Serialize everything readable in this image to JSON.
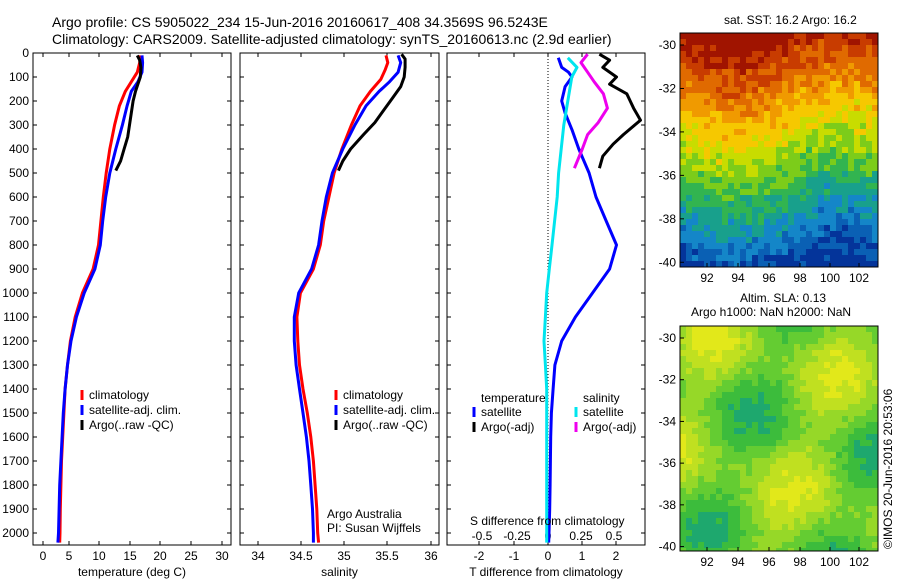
{
  "header": {
    "line1": "Argo profile: CS 5905022_234 15-Jun-2016 20160617_408 34.3569S 96.5243E",
    "line2": "Climatology: CARS2009. Satellite-adjusted climatology: synTS_20160613.nc (2.9d earlier)"
  },
  "colors": {
    "climatology": "#ff0000",
    "satellite": "#0000ff",
    "argo": "#000000",
    "satellite_salinity": "#00e5ee",
    "argo_adj_salinity": "#ee00ee"
  },
  "depth_axis": {
    "ylim": [
      0,
      2050
    ],
    "ticks": [
      "0",
      "100",
      "200",
      "300",
      "400",
      "500",
      "600",
      "700",
      "800",
      "900",
      "1000",
      "1100",
      "1200",
      "1300",
      "1400",
      "1500",
      "1600",
      "1700",
      "1800",
      "1900",
      "2000"
    ]
  },
  "chart_data": [
    {
      "id": "temperature",
      "type": "line",
      "xlabel": "temperature (deg C)",
      "xlim": [
        -2,
        32
      ],
      "xticks": [
        "0",
        "5",
        "10",
        "15",
        "20",
        "25",
        "30"
      ],
      "legend": [
        "climatology",
        "satellite-adj. clim.",
        "Argo(..raw -QC)"
      ],
      "series": [
        {
          "name": "climatology",
          "color": "#ff0000",
          "points": [
            [
              16.3,
              10
            ],
            [
              16.2,
              40
            ],
            [
              15.8,
              80
            ],
            [
              14.8,
              120
            ],
            [
              13.8,
              160
            ],
            [
              12.8,
              220
            ],
            [
              12.0,
              300
            ],
            [
              11.2,
              400
            ],
            [
              10.6,
              500
            ],
            [
              10.1,
              600
            ],
            [
              9.7,
              700
            ],
            [
              9.3,
              800
            ],
            [
              8.4,
              900
            ],
            [
              6.6,
              1000
            ],
            [
              5.4,
              1100
            ],
            [
              4.6,
              1200
            ],
            [
              4.1,
              1300
            ],
            [
              3.7,
              1400
            ],
            [
              3.5,
              1500
            ],
            [
              3.3,
              1600
            ],
            [
              3.1,
              1700
            ],
            [
              3.0,
              1800
            ],
            [
              2.9,
              1900
            ],
            [
              2.85,
              2000
            ],
            [
              2.8,
              2040
            ]
          ]
        },
        {
          "name": "satellite-adj. clim.",
          "color": "#0000ff",
          "points": [
            [
              16.6,
              10
            ],
            [
              16.7,
              40
            ],
            [
              16.6,
              80
            ],
            [
              15.9,
              120
            ],
            [
              14.8,
              160
            ],
            [
              14.1,
              220
            ],
            [
              13.3,
              300
            ],
            [
              12.2,
              400
            ],
            [
              11.2,
              500
            ],
            [
              10.5,
              600
            ],
            [
              10.0,
              700
            ],
            [
              9.6,
              800
            ],
            [
              8.7,
              900
            ],
            [
              6.9,
              1000
            ],
            [
              5.6,
              1100
            ],
            [
              4.7,
              1200
            ],
            [
              4.1,
              1300
            ],
            [
              3.7,
              1400
            ],
            [
              3.4,
              1500
            ],
            [
              3.2,
              1600
            ],
            [
              3.0,
              1700
            ],
            [
              2.8,
              1800
            ],
            [
              2.7,
              1900
            ],
            [
              2.6,
              2000
            ],
            [
              2.5,
              2040
            ]
          ]
        },
        {
          "name": "Argo(..raw -QC)",
          "color": "#000000",
          "points": [
            [
              15.8,
              10
            ],
            [
              16.2,
              30
            ],
            [
              16.4,
              60
            ],
            [
              16.3,
              100
            ],
            [
              15.9,
              130
            ],
            [
              15.5,
              160
            ],
            [
              15.1,
              200
            ],
            [
              14.8,
              250
            ],
            [
              14.5,
              300
            ],
            [
              14.2,
              350
            ],
            [
              13.6,
              400
            ],
            [
              13.0,
              450
            ],
            [
              12.2,
              490
            ]
          ]
        }
      ]
    },
    {
      "id": "salinity",
      "type": "line",
      "xlabel": "salinity",
      "xlim": [
        33.8,
        36.1
      ],
      "xticks": [
        "34",
        "34.5",
        "35",
        "35.5",
        "36"
      ],
      "legend": [
        "climatology",
        "satellite-adj. clim.",
        "Argo(..raw -QC)"
      ],
      "series": [
        {
          "name": "climatology",
          "color": "#ff0000",
          "points": [
            [
              35.48,
              10
            ],
            [
              35.5,
              40
            ],
            [
              35.47,
              70
            ],
            [
              35.42,
              110
            ],
            [
              35.3,
              160
            ],
            [
              35.18,
              220
            ],
            [
              35.08,
              300
            ],
            [
              34.97,
              400
            ],
            [
              34.88,
              500
            ],
            [
              34.82,
              600
            ],
            [
              34.76,
              700
            ],
            [
              34.72,
              800
            ],
            [
              34.64,
              900
            ],
            [
              34.49,
              1000
            ],
            [
              34.45,
              1100
            ],
            [
              34.46,
              1200
            ],
            [
              34.48,
              1300
            ],
            [
              34.52,
              1400
            ],
            [
              34.57,
              1500
            ],
            [
              34.61,
              1600
            ],
            [
              34.64,
              1700
            ],
            [
              34.66,
              1800
            ],
            [
              34.68,
              1900
            ],
            [
              34.69,
              2000
            ],
            [
              34.7,
              2040
            ]
          ]
        },
        {
          "name": "satellite-adj. clim.",
          "color": "#0000ff",
          "points": [
            [
              35.62,
              10
            ],
            [
              35.65,
              40
            ],
            [
              35.62,
              80
            ],
            [
              35.52,
              120
            ],
            [
              35.4,
              160
            ],
            [
              35.25,
              220
            ],
            [
              35.12,
              300
            ],
            [
              34.98,
              400
            ],
            [
              34.86,
              500
            ],
            [
              34.79,
              600
            ],
            [
              34.74,
              700
            ],
            [
              34.7,
              800
            ],
            [
              34.62,
              900
            ],
            [
              34.47,
              1000
            ],
            [
              34.42,
              1100
            ],
            [
              34.42,
              1200
            ],
            [
              34.44,
              1300
            ],
            [
              34.48,
              1400
            ],
            [
              34.52,
              1500
            ],
            [
              34.56,
              1600
            ],
            [
              34.59,
              1700
            ],
            [
              34.61,
              1800
            ],
            [
              34.63,
              1900
            ],
            [
              34.64,
              2000
            ],
            [
              34.64,
              2040
            ]
          ]
        },
        {
          "name": "Argo(..raw -QC)",
          "color": "#000000",
          "points": [
            [
              35.66,
              5
            ],
            [
              35.7,
              25
            ],
            [
              35.7,
              60
            ],
            [
              35.69,
              100
            ],
            [
              35.65,
              140
            ],
            [
              35.55,
              190
            ],
            [
              35.45,
              240
            ],
            [
              35.35,
              290
            ],
            [
              35.22,
              340
            ],
            [
              35.07,
              400
            ],
            [
              34.98,
              450
            ],
            [
              34.93,
              490
            ]
          ]
        }
      ]
    },
    {
      "id": "difference",
      "type": "line",
      "xlabel": "T difference from climatology",
      "xlabel2": "S difference from climatology",
      "xlim": [
        -2.7,
        3.0
      ],
      "ylim_note": "depth",
      "xticks": [
        "-2",
        "-1",
        "0",
        "1",
        "2"
      ],
      "xticks2": [
        "-0.5",
        "-0.25",
        "0",
        "0.25",
        "0.5"
      ],
      "legend_temperature": {
        "title": "temperature",
        "items": [
          "satellite",
          "Argo(-adj)"
        ]
      },
      "legend_salinity": {
        "title": "salinity",
        "items": [
          "satellite",
          "Argo(-adj)"
        ]
      },
      "series": [
        {
          "name": "temperature satellite",
          "color": "#0000ff",
          "points": [
            [
              0.3,
              20
            ],
            [
              0.4,
              60
            ],
            [
              0.6,
              80
            ],
            [
              0.7,
              100
            ],
            [
              0.5,
              140
            ],
            [
              0.4,
              200
            ],
            [
              0.5,
              250
            ],
            [
              0.7,
              320
            ],
            [
              0.9,
              400
            ],
            [
              1.2,
              500
            ],
            [
              1.4,
              600
            ],
            [
              1.7,
              700
            ],
            [
              2.0,
              800
            ],
            [
              1.8,
              900
            ],
            [
              1.3,
              1000
            ],
            [
              0.8,
              1100
            ],
            [
              0.4,
              1200
            ],
            [
              0.2,
              1300
            ],
            [
              0.15,
              1400
            ],
            [
              0.1,
              1500
            ],
            [
              0.08,
              1600
            ],
            [
              0.07,
              1700
            ],
            [
              0.06,
              1800
            ],
            [
              0.05,
              1900
            ],
            [
              0.03,
              2000
            ],
            [
              0.02,
              2040
            ]
          ]
        },
        {
          "name": "temperature Argo(-adj)",
          "color": "#000000",
          "points": [
            [
              1.5,
              5
            ],
            [
              1.8,
              30
            ],
            [
              1.6,
              60
            ],
            [
              2.0,
              100
            ],
            [
              1.8,
              130
            ],
            [
              2.3,
              170
            ],
            [
              2.4,
              200
            ],
            [
              2.5,
              230
            ],
            [
              2.7,
              280
            ],
            [
              2.2,
              340
            ],
            [
              1.9,
              380
            ],
            [
              1.6,
              430
            ],
            [
              1.5,
              480
            ]
          ]
        },
        {
          "name": "salinity satellite",
          "color": "#00e5ee",
          "points": [
            [
              0.15,
              20
            ],
            [
              0.22,
              60
            ],
            [
              0.18,
              100
            ],
            [
              0.15,
              200
            ],
            [
              0.12,
              300
            ],
            [
              0.1,
              400
            ],
            [
              0.08,
              500
            ],
            [
              0.07,
              600
            ],
            [
              0.05,
              700
            ],
            [
              0.03,
              800
            ],
            [
              0.01,
              900
            ],
            [
              -0.01,
              1000
            ],
            [
              -0.02,
              1100
            ],
            [
              -0.03,
              1200
            ],
            [
              -0.02,
              1300
            ],
            [
              -0.01,
              1400
            ],
            [
              -0.01,
              1500
            ],
            [
              -0.01,
              1600
            ],
            [
              -0.01,
              1700
            ],
            [
              -0.01,
              1800
            ],
            [
              -0.01,
              1900
            ],
            [
              -0.01,
              2000
            ],
            [
              -0.01,
              2040
            ]
          ]
        },
        {
          "name": "salinity Argo(-adj)",
          "color": "#ee00ee",
          "points": [
            [
              0.3,
              5
            ],
            [
              0.25,
              40
            ],
            [
              0.3,
              80
            ],
            [
              0.35,
              120
            ],
            [
              0.42,
              170
            ],
            [
              0.45,
              230
            ],
            [
              0.38,
              290
            ],
            [
              0.3,
              340
            ],
            [
              0.26,
              400
            ],
            [
              0.2,
              480
            ]
          ]
        }
      ]
    }
  ],
  "sst_panel": {
    "title": "sat. SST: 16.2 Argo: 16.2",
    "xticks": [
      "92",
      "94",
      "96",
      "98",
      "100",
      "102"
    ],
    "yticks": [
      "-30",
      "-32",
      "-34",
      "-36",
      "-38",
      "-40"
    ]
  },
  "sla_panel": {
    "title1": "Altim. SLA: 0.13",
    "title2": "Argo h1000: NaN h2000: NaN",
    "xticks": [
      "92",
      "94",
      "96",
      "98",
      "100",
      "102"
    ],
    "yticks": [
      "-30",
      "-32",
      "-34",
      "-36",
      "-38",
      "-40"
    ]
  },
  "footer": {
    "credit1": "Argo Australia",
    "credit2": "PI: Susan Wijffels",
    "stamp": "©IMOS 20-Jun-2016 20:53:06"
  }
}
